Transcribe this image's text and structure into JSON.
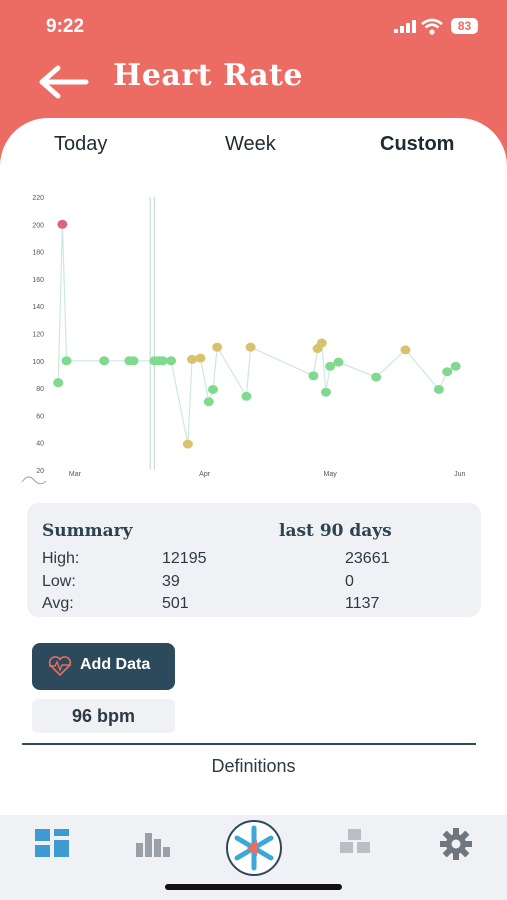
{
  "status": {
    "time": "9:22",
    "battery": "83"
  },
  "header": {
    "title": "Heart Rate"
  },
  "tabs": [
    {
      "label": "Today",
      "active": false
    },
    {
      "label": "Week",
      "active": false
    },
    {
      "label": "Custom",
      "active": true
    }
  ],
  "chart_data": {
    "type": "scatter",
    "ylim": [
      20,
      220
    ],
    "yticks": [
      20,
      40,
      60,
      80,
      100,
      120,
      140,
      160,
      180,
      200,
      220
    ],
    "xticks": [
      "Mar",
      "Apr",
      "May",
      "Jun"
    ],
    "colors": {
      "normal": "#7fd98e",
      "elevated": "#d9c26e",
      "high": "#d9667a",
      "line": "#cde7e2"
    },
    "points": [
      {
        "x": "Feb 25",
        "y": 84,
        "level": "normal"
      },
      {
        "x": "Feb 26",
        "y": 200,
        "level": "high"
      },
      {
        "x": "Feb 27",
        "y": 100,
        "level": "normal"
      },
      {
        "x": "Mar 8",
        "y": 100,
        "level": "normal"
      },
      {
        "x": "Mar 14",
        "y": 100,
        "level": "normal"
      },
      {
        "x": "Mar 15",
        "y": 100,
        "level": "normal"
      },
      {
        "x": "Mar 20",
        "y": 100,
        "level": "normal"
      },
      {
        "x": "Mar 21",
        "y": 100,
        "level": "normal"
      },
      {
        "x": "Mar 22",
        "y": 100,
        "level": "normal"
      },
      {
        "x": "Mar 24",
        "y": 100,
        "level": "normal"
      },
      {
        "x": "Mar 28",
        "y": 39,
        "level": "elevated"
      },
      {
        "x": "Mar 29",
        "y": 101,
        "level": "elevated"
      },
      {
        "x": "Mar 31",
        "y": 102,
        "level": "elevated"
      },
      {
        "x": "Apr 2",
        "y": 70,
        "level": "normal"
      },
      {
        "x": "Apr 3",
        "y": 79,
        "level": "normal"
      },
      {
        "x": "Apr 4",
        "y": 110,
        "level": "elevated"
      },
      {
        "x": "Apr 11",
        "y": 74,
        "level": "normal"
      },
      {
        "x": "Apr 12",
        "y": 110,
        "level": "elevated"
      },
      {
        "x": "Apr 27",
        "y": 89,
        "level": "normal"
      },
      {
        "x": "Apr 28",
        "y": 109,
        "level": "elevated"
      },
      {
        "x": "Apr 29",
        "y": 113,
        "level": "elevated"
      },
      {
        "x": "Apr 30",
        "y": 77,
        "level": "normal"
      },
      {
        "x": "May 1",
        "y": 96,
        "level": "normal"
      },
      {
        "x": "May 3",
        "y": 99,
        "level": "normal"
      },
      {
        "x": "May 12",
        "y": 88,
        "level": "normal"
      },
      {
        "x": "May 19",
        "y": 108,
        "level": "elevated"
      },
      {
        "x": "May 27",
        "y": 79,
        "level": "normal"
      },
      {
        "x": "May 29",
        "y": 92,
        "level": "normal"
      },
      {
        "x": "May 31",
        "y": 96,
        "level": "normal"
      }
    ]
  },
  "summary": {
    "title": "Summary",
    "period": "last 90 days",
    "rows": [
      {
        "label": "High:",
        "value1": "12195",
        "value2": "23661"
      },
      {
        "label": "Low:",
        "value1": "39",
        "value2": "0"
      },
      {
        "label": "Avg:",
        "value1": "501",
        "value2": "1137"
      }
    ]
  },
  "add_data_label": "Add Data",
  "current_value": "96 bpm",
  "definitions_label": "Definitions",
  "tabbar": [
    "dashboard-icon",
    "bar-chart-icon",
    "app-logo-icon",
    "cubes-icon",
    "gear-icon"
  ]
}
